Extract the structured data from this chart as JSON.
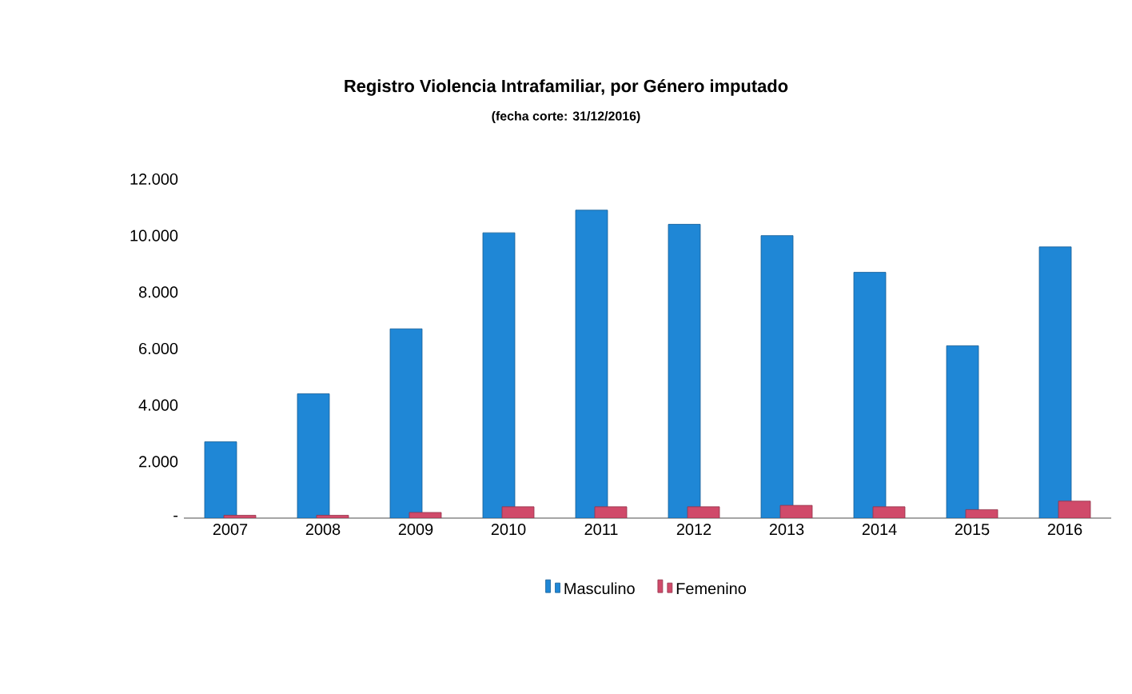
{
  "chart_data": {
    "type": "bar",
    "title": "Registro Violencia Intrafamiliar, por Género imputado",
    "subtitle": "(fecha corte: 31/12/2016)",
    "categories": [
      "2007",
      "2008",
      "2009",
      "2010",
      "2011",
      "2012",
      "2013",
      "2014",
      "2015",
      "2016"
    ],
    "series": [
      {
        "name": "Masculino",
        "color": "#1f87d6",
        "values": [
          2700,
          4400,
          6700,
          10100,
          10900,
          10400,
          10000,
          8700,
          6100,
          9600
        ]
      },
      {
        "name": "Femenino",
        "color": "#d04a6a",
        "values": [
          100,
          100,
          200,
          400,
          400,
          400,
          450,
          400,
          300,
          600
        ]
      }
    ],
    "ylim": [
      0,
      12000
    ],
    "yticks": [
      {
        "value": 0,
        "label": "-"
      },
      {
        "value": 2000,
        "label": "2.000"
      },
      {
        "value": 4000,
        "label": "4.000"
      },
      {
        "value": 6000,
        "label": "6.000"
      },
      {
        "value": 8000,
        "label": "8.000"
      },
      {
        "value": 10000,
        "label": "10.000"
      },
      {
        "value": 12000,
        "label": "12.000"
      }
    ],
    "legend": "bottom"
  }
}
